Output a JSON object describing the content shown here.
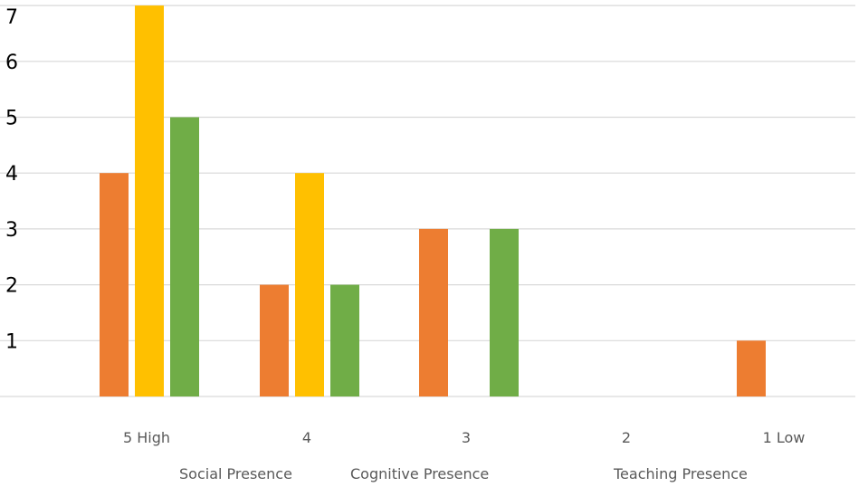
{
  "chart_data": {
    "type": "bar",
    "title": "",
    "xlabel": "",
    "ylabel": "",
    "categories": [
      "5 High",
      "4",
      "3",
      "2",
      "1 Low"
    ],
    "yticks": [
      1,
      2,
      3,
      4,
      5,
      6,
      7
    ],
    "ylim": [
      0,
      7
    ],
    "grid": true,
    "legend_position": "bottom",
    "series": [
      {
        "name": "Social Presence",
        "color": "#ED7D31",
        "values": [
          4,
          2,
          3,
          0,
          1
        ]
      },
      {
        "name": "Cognitive Presence",
        "color": "#FFC000",
        "values": [
          7,
          4,
          0,
          0,
          0
        ]
      },
      {
        "name": "Teaching Presence",
        "color": "#70AD47",
        "values": [
          5,
          2,
          3,
          0,
          0
        ]
      }
    ]
  }
}
